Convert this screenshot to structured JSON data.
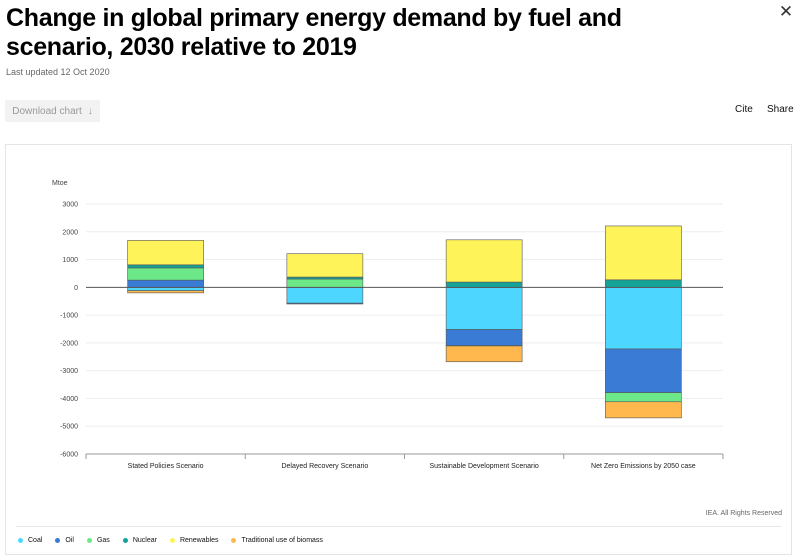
{
  "header": {
    "title": "Change in global primary energy demand by fuel and scenario, 2030 relative to 2019",
    "updated": "Last updated 12 Oct 2020",
    "close_icon": "close-icon"
  },
  "toolbar": {
    "download_label": "Download chart",
    "download_arrow": "↓",
    "cite_label": "Cite",
    "share_label": "Share"
  },
  "source": "IEA. All Rights Reserved",
  "colors": {
    "Coal": "#4dd6ff",
    "Oil": "#3a7bd5",
    "Gas": "#6de889",
    "Nuclear": "#14a398",
    "Renewables": "#fff35a",
    "Traditional use of biomass": "#ffb84d"
  },
  "chart_data": {
    "type": "bar",
    "stacked": true,
    "ylabel": "Mtoe",
    "ylim": [
      -6000,
      3000
    ],
    "yticks": [
      3000,
      2000,
      1000,
      0,
      -1000,
      -2000,
      -3000,
      -4000,
      -5000,
      -6000
    ],
    "categories": [
      "Stated Policies Scenario",
      "Delayed Recovery Scenario",
      "Sustainable Development Scenario",
      "Net Zero Emissions by 2050 case"
    ],
    "series": [
      {
        "name": "Coal",
        "values": [
          -120,
          -570,
          -1520,
          -2220
        ]
      },
      {
        "name": "Oil",
        "values": [
          260,
          -30,
          -580,
          -1570
        ]
      },
      {
        "name": "Gas",
        "values": [
          440,
          300,
          -10,
          -330
        ]
      },
      {
        "name": "Nuclear",
        "values": [
          110,
          70,
          190,
          270
        ]
      },
      {
        "name": "Renewables",
        "values": [
          880,
          840,
          1520,
          1940
        ]
      },
      {
        "name": "Traditional use of biomass",
        "values": [
          -80,
          0,
          -570,
          -580
        ]
      }
    ]
  }
}
